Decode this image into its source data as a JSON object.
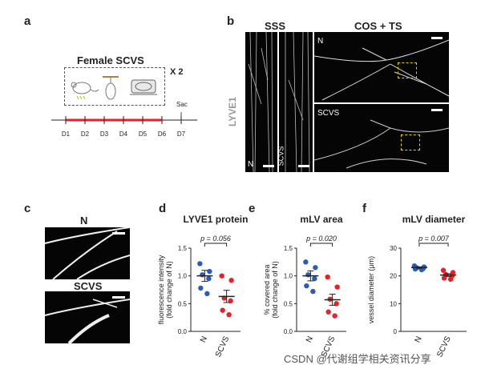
{
  "panel_a": {
    "letter": "a",
    "box_title": "Female SCVS",
    "repeat": "X 2",
    "sac": "Sac",
    "days": [
      "D1",
      "D2",
      "D3",
      "D4",
      "D5",
      "D6",
      "D7"
    ],
    "stress_day_range": [
      "D1",
      "D6"
    ],
    "colors": {
      "stress_bar": "#e8202a",
      "timeline": "#222222"
    }
  },
  "panel_b": {
    "letter": "b",
    "sss_label": "SSS",
    "costs_label": "COS + TS",
    "marker": "LYVE1",
    "n_label": "N",
    "scvs_label": "SCVS"
  },
  "panel_c": {
    "letter": "c",
    "n_label": "N",
    "scvs_label": "SCVS"
  },
  "chart_data": [
    {
      "panel": "d",
      "type": "scatter",
      "title": "LYVE1 protein",
      "ylabel": "fluorescence intensity\n(fold change of N)",
      "categories": [
        "N",
        "SCVS"
      ],
      "pvalue": "p = 0.056",
      "ylim": [
        0,
        1.5
      ],
      "yticks": [
        0,
        0.5,
        1.0,
        1.5
      ],
      "series": [
        {
          "name": "N",
          "color": "#2a5bb8",
          "values": [
            1.22,
            1.08,
            1.02,
            0.95,
            0.78,
            0.68
          ],
          "mean": 1.0,
          "sem": 0.1
        },
        {
          "name": "SCVS",
          "color": "#e8202a",
          "values": [
            1.0,
            0.92,
            0.6,
            0.55,
            0.38,
            0.3
          ],
          "mean": 0.63,
          "sem": 0.11
        }
      ]
    },
    {
      "panel": "e",
      "type": "scatter",
      "title": "mLV area",
      "ylabel": "% covered area\n(fold change of N)",
      "categories": [
        "N",
        "SCVS"
      ],
      "pvalue": "p = 0.020",
      "ylim": [
        0,
        1.5
      ],
      "yticks": [
        0,
        0.5,
        1.0,
        1.5
      ],
      "series": [
        {
          "name": "N",
          "color": "#2a5bb8",
          "values": [
            1.25,
            1.15,
            1.02,
            0.95,
            0.82,
            0.72
          ],
          "mean": 1.0,
          "sem": 0.09
        },
        {
          "name": "SCVS",
          "color": "#e8202a",
          "values": [
            0.98,
            0.8,
            0.58,
            0.5,
            0.35,
            0.28
          ],
          "mean": 0.57,
          "sem": 0.1
        }
      ]
    },
    {
      "panel": "f",
      "type": "scatter",
      "title": "mLV diameter",
      "ylabel": "vessel diameter (μm)",
      "categories": [
        "N",
        "SCVS"
      ],
      "pvalue": "p = 0.007",
      "ylim": [
        0,
        30
      ],
      "yticks": [
        0,
        10,
        20,
        30
      ],
      "series": [
        {
          "name": "N",
          "color": "#2a5bb8",
          "values": [
            23.6,
            23.2,
            22.9,
            22.7,
            22.5,
            22.2
          ],
          "mean": 23.0,
          "sem": 0.25
        },
        {
          "name": "SCVS",
          "color": "#e8202a",
          "values": [
            22.0,
            21.2,
            20.5,
            20.0,
            19.2,
            18.8
          ],
          "mean": 20.3,
          "sem": 0.5
        }
      ]
    }
  ],
  "watermark": "CSDN @代谢组学相关资讯分享"
}
